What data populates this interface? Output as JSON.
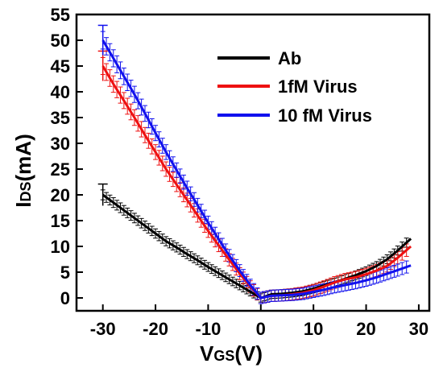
{
  "chart_data": {
    "type": "line",
    "xlabel": "VGS(V)",
    "xlabel_main": "V",
    "xlabel_sub": "GS",
    "xlabel_unit": "(V)",
    "ylabel": "IDS(mA)",
    "ylabel_main": "I",
    "ylabel_sub": "DS",
    "ylabel_unit": "(mA)",
    "xlim": [
      -35,
      32
    ],
    "ylim": [
      -2.5,
      55
    ],
    "xticks": [
      -30,
      -20,
      -10,
      0,
      10,
      20,
      30
    ],
    "yticks": [
      0,
      5,
      10,
      15,
      20,
      25,
      30,
      35,
      40,
      45,
      50,
      55
    ],
    "legend_position": "top-right",
    "series": [
      {
        "name": "Ab",
        "color": "#000000",
        "x": [
          -30,
          -28,
          -26,
          -24,
          -22,
          -20,
          -18,
          -16,
          -14,
          -12,
          -10,
          -8,
          -6,
          -4,
          -2,
          0,
          2,
          4,
          6,
          8,
          10,
          12,
          14,
          16,
          18,
          20,
          22,
          24,
          26,
          28.5
        ],
        "y": [
          20,
          18.5,
          17,
          15.5,
          14,
          12.5,
          11,
          9.8,
          8.5,
          7.3,
          6,
          4.8,
          3.6,
          2.4,
          1.2,
          0,
          0.7,
          0.8,
          1.0,
          1.3,
          1.8,
          2.4,
          3.0,
          3.7,
          4.4,
          5.2,
          6.2,
          7.5,
          9.2,
          11.5
        ],
        "err": 1.0
      },
      {
        "name": "1fM Virus",
        "color": "#ee1111",
        "x": [
          -30,
          -28,
          -26,
          -24,
          -22,
          -20,
          -18,
          -16,
          -14,
          -12,
          -10,
          -8,
          -6,
          -4,
          -2,
          0,
          2,
          4,
          6,
          8,
          10,
          12,
          14,
          16,
          18,
          20,
          22,
          24,
          26,
          28.5
        ],
        "y": [
          45,
          41.5,
          38.3,
          35,
          31.6,
          28.3,
          25,
          22,
          19,
          16,
          13,
          10.2,
          7.4,
          4.7,
          2.2,
          0,
          0.4,
          0.5,
          0.7,
          1.0,
          1.5,
          2.2,
          3.0,
          3.6,
          4.0,
          4.6,
          5.3,
          6.2,
          7.8,
          10
        ],
        "err": 1.5
      },
      {
        "name": "10 fM Virus",
        "color": "#1111ee",
        "x": [
          -30,
          -28,
          -26,
          -24,
          -22,
          -20,
          -18,
          -16,
          -14,
          -12,
          -10,
          -8,
          -6,
          -4,
          -2,
          0,
          2,
          4,
          6,
          8,
          10,
          12,
          14,
          16,
          18,
          20,
          22,
          24,
          26,
          28.5
        ],
        "y": [
          50,
          46.5,
          43,
          39.5,
          35.8,
          32,
          28.3,
          24.8,
          21.3,
          18,
          14.6,
          11.4,
          8.2,
          5.3,
          2.5,
          0,
          0.4,
          0.5,
          0.6,
          0.8,
          1.2,
          1.6,
          2.1,
          2.5,
          2.9,
          3.4,
          4.0,
          4.7,
          5.4,
          6.3
        ],
        "err": 1.5
      }
    ]
  }
}
